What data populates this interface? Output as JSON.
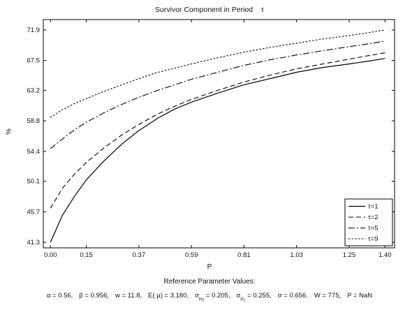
{
  "chart_data": {
    "type": "line",
    "title": "Survivor Component in Period    τ",
    "xlabel": "P",
    "ylabel": "%",
    "xlim": [
      -0.03,
      1.44
    ],
    "ylim": [
      40.5,
      73.4
    ],
    "grid": false,
    "legend_position": "lower right",
    "xtick_labels": [
      "0.00",
      "0.15",
      "0.37",
      "0.59",
      "0.81",
      "1.03",
      "1.25",
      "1.40"
    ],
    "ytick_labels": [
      "41.3",
      "45.7",
      "50.1",
      "54.4",
      "58.8",
      "63.2",
      "67.5",
      "71.9"
    ],
    "x": [
      0.0,
      0.05,
      0.1,
      0.15,
      0.22,
      0.3,
      0.37,
      0.45,
      0.52,
      0.59,
      0.7,
      0.81,
      0.92,
      1.03,
      1.14,
      1.25,
      1.33,
      1.4
    ],
    "series": [
      {
        "name": "τ=1",
        "style": "solid",
        "values": [
          41.3,
          45.2,
          47.9,
          50.3,
          52.9,
          55.5,
          57.4,
          59.2,
          60.5,
          61.5,
          62.8,
          64.0,
          64.9,
          65.8,
          66.5,
          67.0,
          67.4,
          67.8
        ]
      },
      {
        "name": "τ=2",
        "style": "dashed",
        "values": [
          46.2,
          49.1,
          51.1,
          52.8,
          54.8,
          56.8,
          58.3,
          59.8,
          60.9,
          61.9,
          63.2,
          64.4,
          65.4,
          66.3,
          67.0,
          67.7,
          68.2,
          68.6
        ]
      },
      {
        "name": "τ=5",
        "style": "dashdot",
        "values": [
          54.8,
          56.2,
          57.5,
          58.6,
          59.9,
          61.2,
          62.2,
          63.2,
          64.0,
          64.8,
          65.8,
          66.8,
          67.6,
          68.3,
          68.9,
          69.5,
          69.9,
          70.3
        ]
      },
      {
        "name": "τ=9",
        "style": "dotted",
        "values": [
          59.3,
          60.4,
          61.3,
          62.0,
          63.0,
          64.0,
          64.9,
          65.8,
          66.4,
          67.0,
          67.9,
          68.7,
          69.4,
          70.0,
          70.6,
          71.1,
          71.5,
          71.9
        ]
      }
    ]
  },
  "footer": {
    "heading": "Reference Parameter Values:",
    "params": [
      {
        "base": "α",
        "value": "0.56"
      },
      {
        "base": "β",
        "value": "0.956"
      },
      {
        "base": "w",
        "value": "11.8"
      },
      {
        "base": "E( μ)",
        "value": "3.180"
      },
      {
        "base": "σ",
        "sub": "μ",
        "subsub": "0",
        "value": "0.205"
      },
      {
        "base": "σ",
        "sub": "μ",
        "subsub": "1",
        "value": "0.255"
      },
      {
        "base": "σ",
        "value": "0.656"
      },
      {
        "base": "W",
        "value": "775"
      },
      {
        "base": "P",
        "value": "NaN"
      }
    ]
  }
}
